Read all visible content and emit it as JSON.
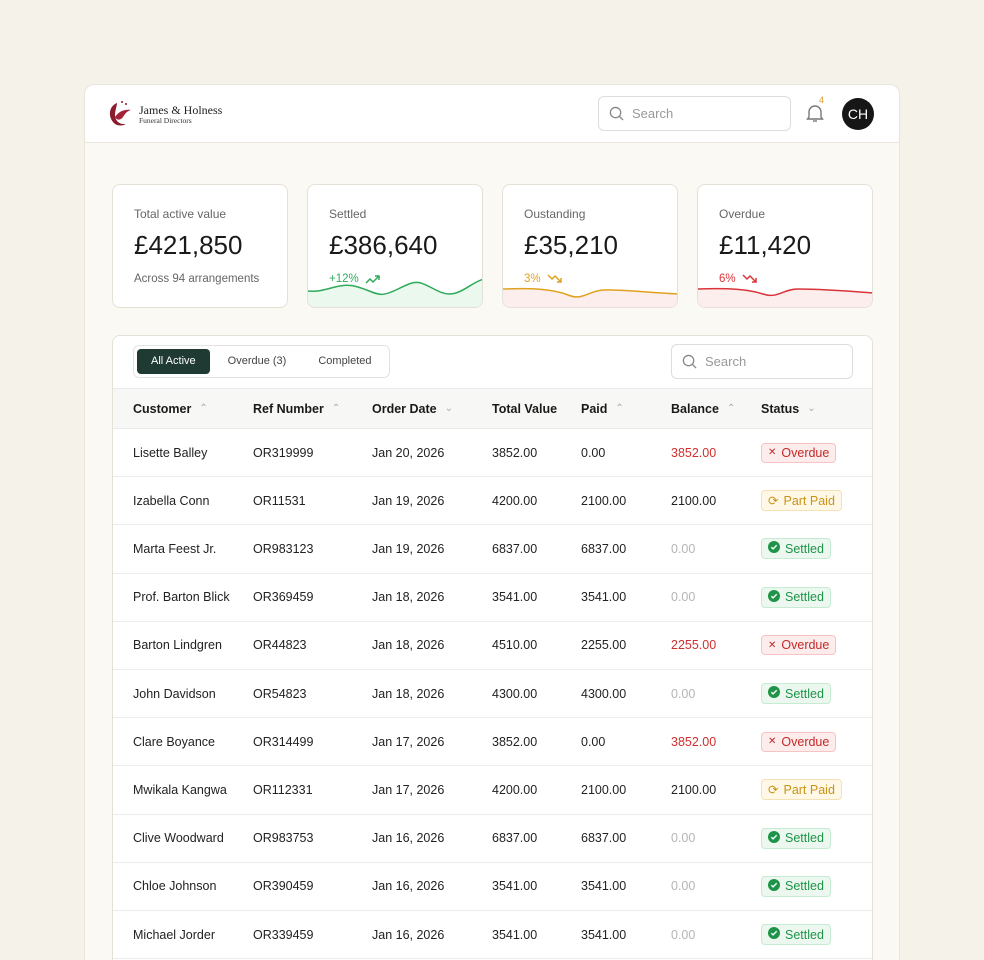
{
  "brand": {
    "name": "James & Holness",
    "subtitle": "Funeral Directors"
  },
  "header": {
    "search_placeholder": "Search",
    "notifications": "4",
    "avatar": "CH"
  },
  "stats": [
    {
      "label": "Total active value",
      "value": "£421,850",
      "sub": "Across 94 arrangements"
    },
    {
      "label": "Settled",
      "value": "£386,640",
      "change": "+12%",
      "trend": "up",
      "color": "#2eaa58"
    },
    {
      "label": "Oustanding",
      "value": "£35,210",
      "change": "3%",
      "trend": "down",
      "color": "#e0a21e"
    },
    {
      "label": "Overdue",
      "value": "£11,420",
      "change": "6%",
      "trend": "down",
      "color": "#d8343a"
    }
  ],
  "tabs": [
    "All Active",
    "Overdue (3)",
    "Completed"
  ],
  "table_search_placeholder": "Search",
  "columns": [
    {
      "label": "Customer",
      "sort": "up"
    },
    {
      "label": "Ref Number",
      "sort": "up"
    },
    {
      "label": "Order Date",
      "sort": "down"
    },
    {
      "label": "Total Value",
      "sort": ""
    },
    {
      "label": "Paid",
      "sort": "up"
    },
    {
      "label": "Balance",
      "sort": "up"
    },
    {
      "label": "Status",
      "sort": "down"
    }
  ],
  "rows": [
    [
      "Lisette Balley",
      "OR319999",
      "Jan 20, 2026",
      "3852.00",
      "0.00",
      "3852.00",
      "Overdue"
    ],
    [
      "Izabella Conn",
      "OR11531",
      "Jan 19, 2026",
      "4200.00",
      "2100.00",
      "2100.00",
      "Part Paid"
    ],
    [
      "Marta Feest Jr.",
      "OR983123",
      "Jan 19, 2026",
      "6837.00",
      "6837.00",
      "0.00",
      "Settled"
    ],
    [
      "Prof. Barton Blick",
      "OR369459",
      "Jan 18, 2026",
      "3541.00",
      "3541.00",
      "0.00",
      "Settled"
    ],
    [
      "Barton Lindgren",
      "OR44823",
      "Jan 18, 2026",
      "4510.00",
      "2255.00",
      "2255.00",
      "Overdue"
    ],
    [
      "John Davidson",
      "OR54823",
      "Jan 18, 2026",
      "4300.00",
      "4300.00",
      "0.00",
      "Settled"
    ],
    [
      "Clare Boyance",
      "OR314499",
      "Jan 17, 2026",
      "3852.00",
      "0.00",
      "3852.00",
      "Overdue"
    ],
    [
      "Mwikala Kangwa",
      "OR112331",
      "Jan 17, 2026",
      "4200.00",
      "2100.00",
      "2100.00",
      "Part Paid"
    ],
    [
      "Clive Woodward",
      "OR983753",
      "Jan 16, 2026",
      "6837.00",
      "6837.00",
      "0.00",
      "Settled"
    ],
    [
      "Chloe Johnson",
      "OR390459",
      "Jan 16, 2026",
      "3541.00",
      "3541.00",
      "0.00",
      "Settled"
    ],
    [
      "Michael Jorder",
      "OR339459",
      "Jan 16, 2026",
      "3541.00",
      "3541.00",
      "0.00",
      "Settled"
    ]
  ]
}
